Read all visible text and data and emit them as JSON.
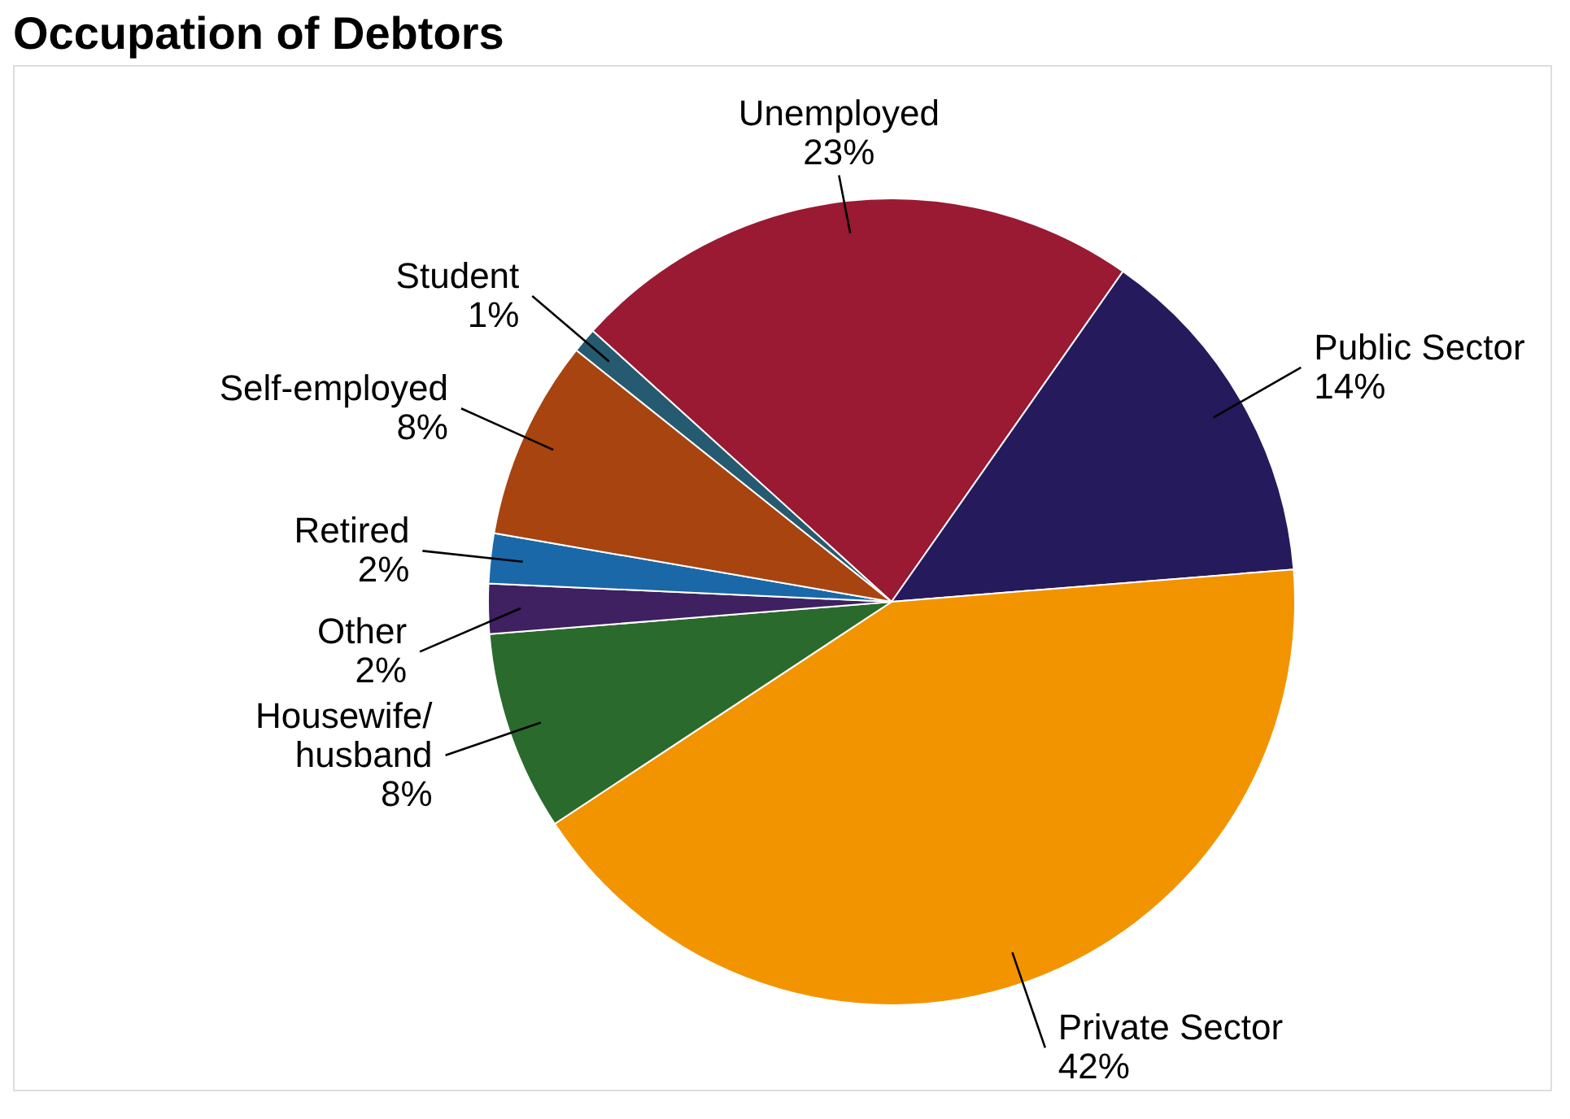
{
  "chart_data": {
    "type": "pie",
    "title": "Occupation of Debtors",
    "categories": [
      "Unemployed",
      "Public Sector",
      "Private Sector",
      "Housewife/husband",
      "Other",
      "Retired",
      "Self-employed",
      "Student"
    ],
    "values": [
      23,
      14,
      42,
      8,
      2,
      2,
      8,
      1
    ],
    "colors": [
      "#991a32",
      "#241a5c",
      "#f29400",
      "#2a6a2d",
      "#3f2060",
      "#1a68a8",
      "#a84410",
      "#255a70"
    ],
    "value_labels": [
      "23%",
      "14%",
      "42%",
      "8%",
      "2%",
      "2%",
      "8%",
      "1%"
    ]
  }
}
